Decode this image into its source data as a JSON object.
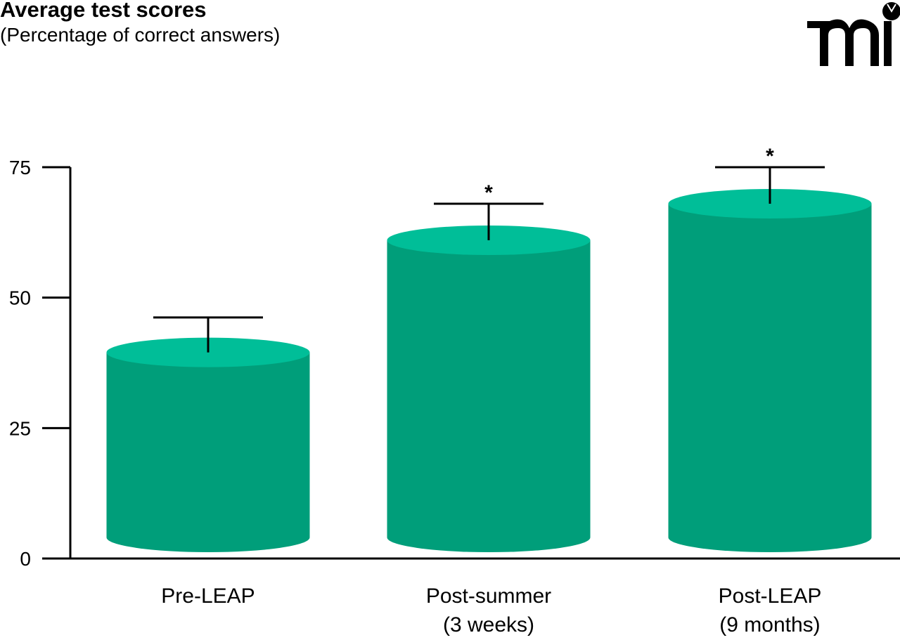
{
  "chart_data": {
    "type": "bar",
    "style": "3d-cylinder",
    "title": "Average test scores",
    "subtitle": "(Percentage of correct answers)",
    "xlabel": "",
    "ylabel": "",
    "ylim": [
      0,
      75
    ],
    "yticks": [
      "0",
      "25",
      "50",
      "75"
    ],
    "categories": [
      [
        "Pre-LEAP"
      ],
      [
        "Post-summer",
        "(3 weeks)"
      ],
      [
        "Post-LEAP",
        "(9 months)"
      ]
    ],
    "values": [
      39.5,
      61,
      68
    ],
    "error_upper": [
      46.2,
      68,
      75
    ],
    "significance": [
      "",
      "*",
      "*"
    ],
    "grid": false,
    "colors": {
      "body": "#009e7a",
      "top": "#00be98",
      "axis": "#000000"
    }
  },
  "logo": {
    "text": "mi"
  }
}
